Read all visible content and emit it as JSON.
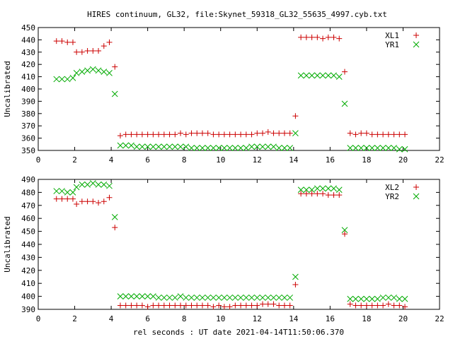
{
  "title": "HIRES continuum, GL32, file:Skynet_59318_GL32_55635_4997.cyb.txt",
  "xlabel": "rel seconds : UT date 2021-04-14T11:50:06.370",
  "chart_data": [
    {
      "type": "scatter",
      "ylabel": "Uncalibrated",
      "xlim": [
        0,
        22
      ],
      "ylim": [
        350,
        450
      ],
      "xticks": [
        0,
        2,
        4,
        6,
        8,
        10,
        12,
        14,
        16,
        18,
        20,
        22
      ],
      "yticks": [
        350,
        360,
        370,
        380,
        390,
        400,
        410,
        420,
        430,
        440,
        450
      ],
      "grid": false,
      "legend_position": "top-right",
      "series": [
        {
          "name": "XL1",
          "color": "#cc0000",
          "marker": "plus",
          "x": [
            1.0,
            1.3,
            1.6,
            1.9,
            2.1,
            2.4,
            2.7,
            3.0,
            3.3,
            3.6,
            3.9,
            4.2,
            4.5,
            4.8,
            5.1,
            5.4,
            5.7,
            6.0,
            6.3,
            6.6,
            6.9,
            7.2,
            7.5,
            7.8,
            8.1,
            8.4,
            8.7,
            9.0,
            9.3,
            9.6,
            9.9,
            10.2,
            10.5,
            10.8,
            11.1,
            11.4,
            11.7,
            12.0,
            12.3,
            12.6,
            12.9,
            13.2,
            13.5,
            13.8,
            14.1,
            14.4,
            14.7,
            15.0,
            15.3,
            15.6,
            15.9,
            16.2,
            16.5,
            16.8,
            17.1,
            17.4,
            17.7,
            18.0,
            18.3,
            18.6,
            18.9,
            19.2,
            19.5,
            19.8,
            20.1
          ],
          "y": [
            439,
            439,
            438,
            438,
            430,
            430,
            431,
            431,
            431,
            435,
            438,
            418,
            362,
            363,
            363,
            363,
            363,
            363,
            363,
            363,
            363,
            363,
            363,
            364,
            363,
            364,
            364,
            364,
            364,
            363,
            363,
            363,
            363,
            363,
            363,
            363,
            363,
            364,
            364,
            365,
            364,
            364,
            364,
            364,
            378,
            442,
            442,
            442,
            442,
            441,
            442,
            442,
            441,
            414,
            364,
            363,
            364,
            364,
            363,
            363,
            363,
            363,
            363,
            363,
            363
          ]
        },
        {
          "name": "YR1",
          "color": "#00aa00",
          "marker": "cross",
          "x": [
            1.0,
            1.3,
            1.6,
            1.9,
            2.1,
            2.4,
            2.7,
            3.0,
            3.3,
            3.6,
            3.9,
            4.2,
            4.5,
            4.8,
            5.1,
            5.4,
            5.7,
            6.0,
            6.3,
            6.6,
            6.9,
            7.2,
            7.5,
            7.8,
            8.1,
            8.4,
            8.7,
            9.0,
            9.3,
            9.6,
            9.9,
            10.2,
            10.5,
            10.8,
            11.1,
            11.4,
            11.7,
            12.0,
            12.3,
            12.6,
            12.9,
            13.2,
            13.5,
            13.8,
            14.1,
            14.4,
            14.7,
            15.0,
            15.3,
            15.6,
            15.9,
            16.2,
            16.5,
            16.8,
            17.1,
            17.4,
            17.7,
            18.0,
            18.3,
            18.6,
            18.9,
            19.2,
            19.5,
            19.8,
            20.1
          ],
          "y": [
            408,
            408,
            408,
            409,
            413,
            414,
            415,
            416,
            415,
            414,
            413,
            396,
            354,
            354,
            354,
            353,
            353,
            353,
            353,
            353,
            353,
            353,
            353,
            353,
            353,
            352,
            352,
            352,
            352,
            352,
            352,
            352,
            352,
            352,
            352,
            352,
            353,
            353,
            353,
            353,
            353,
            352,
            352,
            352,
            364,
            411,
            411,
            411,
            411,
            411,
            411,
            411,
            410,
            388,
            352,
            352,
            352,
            352,
            352,
            352,
            352,
            352,
            352,
            351,
            351
          ]
        }
      ]
    },
    {
      "type": "scatter",
      "ylabel": "Uncalibrated",
      "xlim": [
        0,
        22
      ],
      "ylim": [
        390,
        490
      ],
      "xticks": [
        0,
        2,
        4,
        6,
        8,
        10,
        12,
        14,
        16,
        18,
        20,
        22
      ],
      "yticks": [
        390,
        400,
        410,
        420,
        430,
        440,
        450,
        460,
        470,
        480,
        490
      ],
      "grid": false,
      "legend_position": "top-right",
      "series": [
        {
          "name": "XL2",
          "color": "#cc0000",
          "marker": "plus",
          "x": [
            1.0,
            1.3,
            1.6,
            1.9,
            2.1,
            2.4,
            2.7,
            3.0,
            3.3,
            3.6,
            3.9,
            4.2,
            4.5,
            4.8,
            5.1,
            5.4,
            5.7,
            6.0,
            6.3,
            6.6,
            6.9,
            7.2,
            7.5,
            7.8,
            8.1,
            8.4,
            8.7,
            9.0,
            9.3,
            9.6,
            9.9,
            10.2,
            10.5,
            10.8,
            11.1,
            11.4,
            11.7,
            12.0,
            12.3,
            12.6,
            12.9,
            13.2,
            13.5,
            13.8,
            14.1,
            14.4,
            14.7,
            15.0,
            15.3,
            15.6,
            15.9,
            16.2,
            16.5,
            16.8,
            17.1,
            17.4,
            17.7,
            18.0,
            18.3,
            18.6,
            18.9,
            19.2,
            19.5,
            19.8,
            20.1
          ],
          "y": [
            475,
            475,
            475,
            475,
            471,
            473,
            473,
            473,
            472,
            473,
            476,
            453,
            393,
            393,
            393,
            393,
            393,
            392,
            393,
            393,
            393,
            393,
            393,
            393,
            393,
            393,
            393,
            393,
            393,
            392,
            393,
            392,
            392,
            393,
            393,
            393,
            393,
            393,
            394,
            394,
            394,
            393,
            393,
            393,
            409,
            479,
            479,
            479,
            479,
            479,
            478,
            478,
            478,
            448,
            394,
            393,
            393,
            393,
            393,
            393,
            393,
            394,
            393,
            393,
            392
          ]
        },
        {
          "name": "YR2",
          "color": "#00aa00",
          "marker": "cross",
          "x": [
            1.0,
            1.3,
            1.6,
            1.9,
            2.1,
            2.4,
            2.7,
            3.0,
            3.3,
            3.6,
            3.9,
            4.2,
            4.5,
            4.8,
            5.1,
            5.4,
            5.7,
            6.0,
            6.3,
            6.6,
            6.9,
            7.2,
            7.5,
            7.8,
            8.1,
            8.4,
            8.7,
            9.0,
            9.3,
            9.6,
            9.9,
            10.2,
            10.5,
            10.8,
            11.1,
            11.4,
            11.7,
            12.0,
            12.3,
            12.6,
            12.9,
            13.2,
            13.5,
            13.8,
            14.1,
            14.4,
            14.7,
            15.0,
            15.3,
            15.6,
            15.9,
            16.2,
            16.5,
            16.8,
            17.1,
            17.4,
            17.7,
            18.0,
            18.3,
            18.6,
            18.9,
            19.2,
            19.5,
            19.8,
            20.1
          ],
          "y": [
            481,
            481,
            480,
            480,
            484,
            486,
            486,
            487,
            486,
            486,
            485,
            461,
            400,
            400,
            400,
            400,
            400,
            400,
            400,
            399,
            399,
            399,
            399,
            400,
            399,
            399,
            399,
            399,
            399,
            399,
            399,
            399,
            399,
            399,
            399,
            399,
            399,
            399,
            399,
            399,
            399,
            399,
            399,
            399,
            415,
            482,
            482,
            482,
            483,
            483,
            483,
            483,
            482,
            451,
            398,
            398,
            398,
            398,
            398,
            398,
            399,
            399,
            399,
            398,
            398
          ]
        }
      ]
    }
  ]
}
